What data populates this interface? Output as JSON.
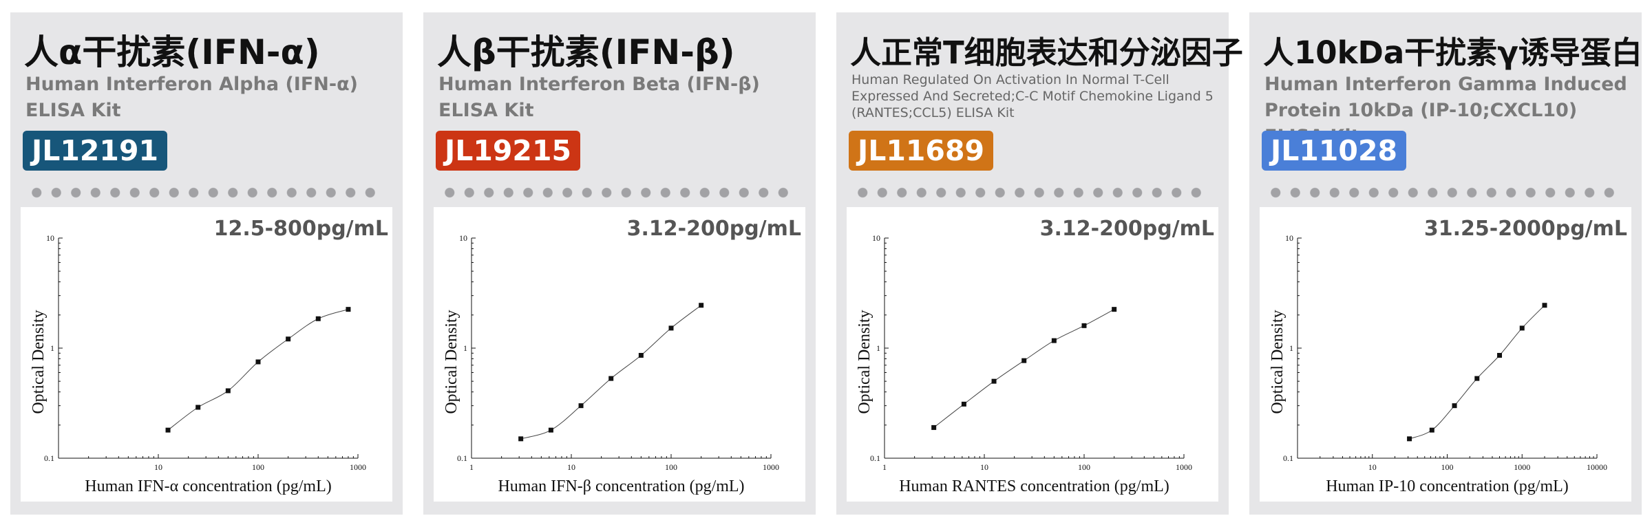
{
  "cards": [
    {
      "title": "人α干扰素(IFN-α)",
      "subtitle": "Human Interferon Alpha (IFN-α) ELISA Kit",
      "code": "JL12191",
      "code_color": "#17567a",
      "range": "12.5-800pg/mL"
    },
    {
      "title": "人β干扰素(IFN-β)",
      "subtitle": "Human Interferon Beta (IFN-β) ELISA Kit",
      "code": "JL19215",
      "code_color": "#cc3514",
      "range": "3.12-200pg/mL"
    },
    {
      "title": "人正常T细胞表达和分泌因子",
      "subtitle": "Human Regulated On Activation In Normal T-Cell Expressed And Secreted;C-C Motif Chemokine Ligand 5 (RANTES;CCL5) ELISA Kit",
      "code": "JL11689",
      "code_color": "#d07417",
      "range": "3.12-200pg/mL"
    },
    {
      "title": "人10kDa干扰素γ诱导蛋白",
      "subtitle": "Human Interferon Gamma Induced Protein 10kDa (IP-10;CXCL10) ELISA Kit",
      "code": "JL11028",
      "code_color": "#4a7fd8",
      "range": "31.25-2000pg/mL"
    }
  ],
  "chart_data": [
    {
      "type": "scatter",
      "xscale": "log",
      "yscale": "log",
      "xlabel": "Human IFN-α concentration (pg/mL)",
      "ylabel": "Optical Density",
      "xlim": [
        1,
        1000
      ],
      "ylim": [
        0.1,
        10
      ],
      "xticks": [
        "10",
        "100",
        "1000"
      ],
      "yticks": [
        "0.1",
        "1",
        "10"
      ],
      "x": [
        12.5,
        25,
        50,
        100,
        200,
        400,
        800
      ],
      "y": [
        0.18,
        0.29,
        0.41,
        0.75,
        1.21,
        1.85,
        2.25
      ]
    },
    {
      "type": "scatter",
      "xscale": "log",
      "yscale": "log",
      "xlabel": "Human IFN-β concentration (pg/mL)",
      "ylabel": "Optical Density",
      "xlim": [
        1,
        1000
      ],
      "ylim": [
        0.1,
        10
      ],
      "xticks": [
        "1",
        "10",
        "100",
        "1000"
      ],
      "yticks": [
        "0.1",
        "1",
        "10"
      ],
      "x": [
        3.12,
        6.25,
        12.5,
        25,
        50,
        100,
        200
      ],
      "y": [
        0.15,
        0.18,
        0.3,
        0.53,
        0.86,
        1.52,
        2.45
      ]
    },
    {
      "type": "scatter",
      "xscale": "log",
      "yscale": "log",
      "xlabel": "Human RANTES concentration (pg/mL)",
      "ylabel": "Optical Density",
      "xlim": [
        1,
        1000
      ],
      "ylim": [
        0.1,
        10
      ],
      "xticks": [
        "1",
        "10",
        "100",
        "1000"
      ],
      "yticks": [
        "0.1",
        "1",
        "10"
      ],
      "x": [
        3.12,
        6.25,
        12.5,
        25,
        50,
        100,
        200
      ],
      "y": [
        0.19,
        0.31,
        0.5,
        0.77,
        1.17,
        1.6,
        2.25
      ]
    },
    {
      "type": "scatter",
      "xscale": "log",
      "yscale": "log",
      "xlabel": "Human IP-10 concentration (pg/mL)",
      "ylabel": "Optical Density",
      "xlim": [
        1,
        10000
      ],
      "ylim": [
        0.1,
        10
      ],
      "xticks": [
        "10",
        "100",
        "1000",
        "10000"
      ],
      "yticks": [
        "0.1",
        "1",
        "10"
      ],
      "x": [
        31.25,
        62.5,
        125,
        250,
        500,
        1000,
        2000
      ],
      "y": [
        0.15,
        0.18,
        0.3,
        0.53,
        0.86,
        1.52,
        2.45
      ]
    }
  ]
}
